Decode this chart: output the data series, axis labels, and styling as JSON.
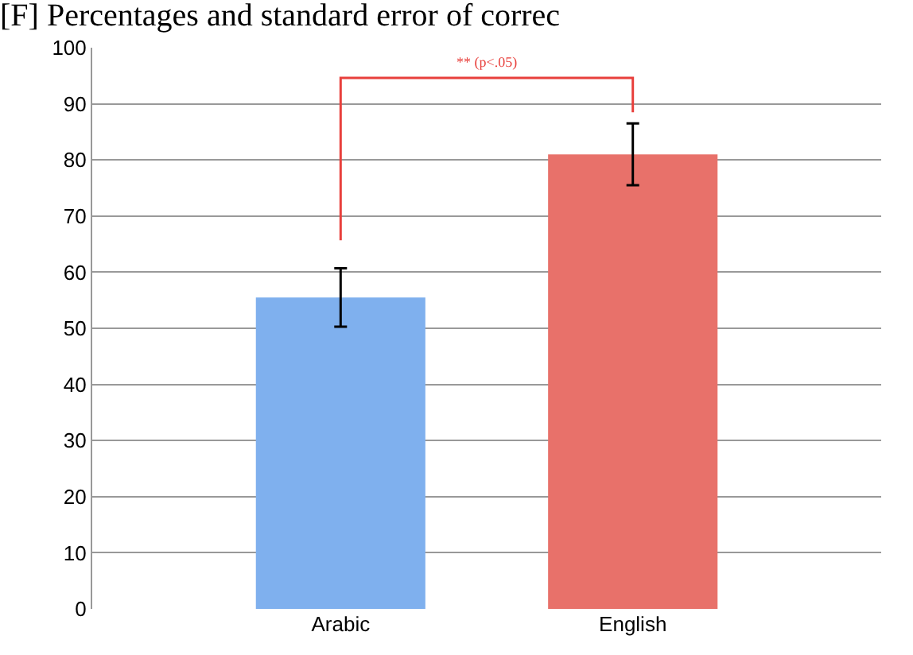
{
  "chart_data": {
    "type": "bar",
    "title": "[F] Percentages and standard error of correc",
    "categories": [
      "Arabic",
      "English"
    ],
    "values": [
      55.5,
      81
    ],
    "errors": [
      5.2,
      5.5
    ],
    "colors": [
      "#7fb0ee",
      "#e8716a"
    ],
    "ylim": [
      0,
      100
    ],
    "yticks": [
      0,
      10,
      20,
      30,
      40,
      50,
      60,
      70,
      80,
      90,
      100
    ],
    "grid": "y",
    "annotations": [
      "** (p<.05)"
    ]
  }
}
